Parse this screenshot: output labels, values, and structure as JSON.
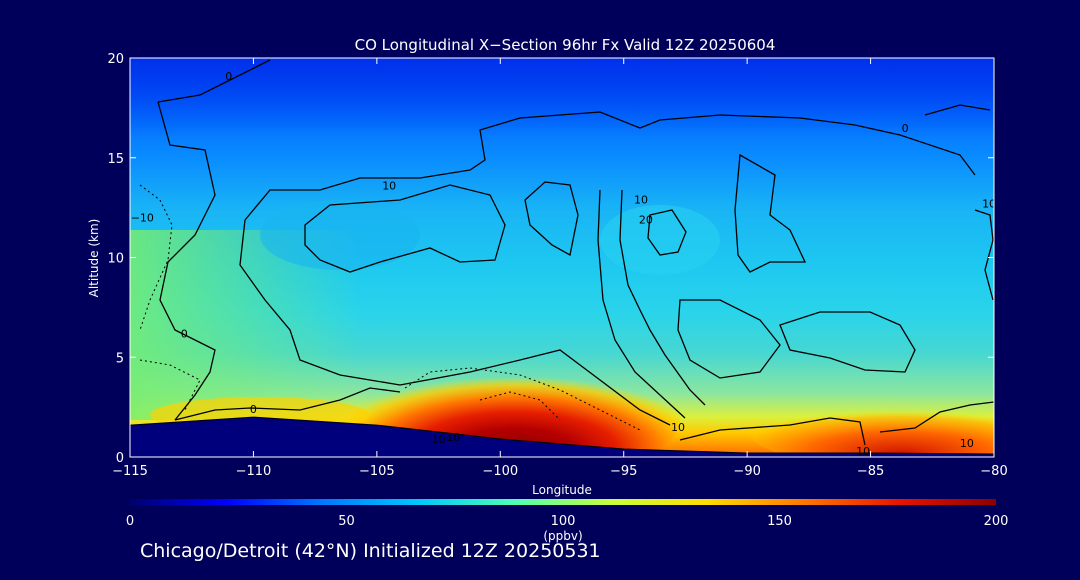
{
  "chart_data": {
    "type": "heatmap",
    "title": "CO Longitudinal X−Section 96hr  Fx Valid 12Z 20250604",
    "xlabel": "Longitude",
    "ylabel": "Altitude (km)",
    "xlim": [
      -115,
      -80
    ],
    "ylim": [
      0,
      20
    ],
    "x_ticks": [
      -115,
      -110,
      -105,
      -100,
      -95,
      -90,
      -85,
      -80
    ],
    "x_tick_labels": [
      "−115",
      "−110",
      "−105",
      "−100",
      "−95",
      "−90",
      "−85",
      "−80"
    ],
    "y_ticks": [
      0,
      5,
      10,
      15,
      20
    ],
    "y_tick_labels": [
      "0",
      "5",
      "10",
      "15",
      "20"
    ],
    "colorbar": {
      "min": 0,
      "max": 200,
      "ticks": [
        0,
        50,
        100,
        150,
        200
      ],
      "tick_labels": [
        "0",
        "50",
        "100",
        "150",
        "200"
      ],
      "label": "(ppbv)",
      "colors": [
        "#00006e",
        "#0000ff",
        "#0078ff",
        "#00c8ff",
        "#50ffb4",
        "#c8ff3c",
        "#ffdc00",
        "#ff7800",
        "#e61400",
        "#8c0000"
      ]
    },
    "field_description": "CO concentration (ppbv) by longitude and altitude",
    "sample_field": {
      "altitudes_km": [
        18,
        15,
        11,
        8,
        5,
        3,
        1.5
      ],
      "longitudes": [
        -115,
        -110,
        -105,
        -100,
        -95,
        -90,
        -85,
        -80
      ],
      "values_ppbv": [
        [
          38,
          40,
          40,
          42,
          42,
          45,
          48,
          48
        ],
        [
          50,
          52,
          58,
          60,
          58,
          58,
          60,
          62
        ],
        [
          88,
          70,
          75,
          78,
          80,
          82,
          80,
          76
        ],
        [
          105,
          96,
          90,
          88,
          85,
          86,
          85,
          82
        ],
        [
          118,
          110,
          100,
          110,
          105,
          95,
          90,
          88
        ],
        [
          135,
          125,
          140,
          175,
          160,
          105,
          100,
          102
        ],
        [
          150,
          140,
          160,
          195,
          190,
          160,
          165,
          165
        ]
      ]
    },
    "terrain_km": [
      {
        "lon": -115,
        "alt": 1.6
      },
      {
        "lon": -110,
        "alt": 2.0
      },
      {
        "lon": -105,
        "alt": 1.6
      },
      {
        "lon": -100,
        "alt": 0.9
      },
      {
        "lon": -95,
        "alt": 0.4
      },
      {
        "lon": -90,
        "alt": 0.2
      },
      {
        "lon": -85,
        "alt": 0.2
      },
      {
        "lon": -80,
        "alt": 0.15
      }
    ],
    "contour_labels": [
      {
        "text": "0",
        "lon": -111,
        "alt": 18.9
      },
      {
        "text": "0",
        "lon": -112.8,
        "alt": 6.0
      },
      {
        "text": "0",
        "lon": -110,
        "alt": 2.2
      },
      {
        "text": "0",
        "lon": -83.6,
        "alt": 16.3
      },
      {
        "text": "10",
        "lon": -104.5,
        "alt": 13.4
      },
      {
        "text": "10",
        "lon": -94.3,
        "alt": 12.7
      },
      {
        "text": "10",
        "lon": -80.2,
        "alt": 12.5
      },
      {
        "text": "10",
        "lon": -92.8,
        "alt": 1.3
      },
      {
        "text": "10",
        "lon": -85.3,
        "alt": 0.1
      },
      {
        "text": "10",
        "lon": -81.1,
        "alt": 0.5
      },
      {
        "text": "20",
        "lon": -94.1,
        "alt": 11.7
      },
      {
        "text": "−10",
        "lon": -114.5,
        "alt": 11.8
      },
      {
        "text": "10",
        "lon": -102.5,
        "alt": 0.7
      },
      {
        "text": "10",
        "lon": -101.9,
        "alt": 0.8
      }
    ]
  },
  "caption": "Chicago/Detroit (42°N) Initialized 12Z 20250531"
}
